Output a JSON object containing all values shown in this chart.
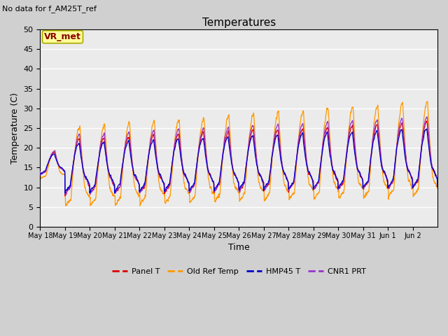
{
  "title": "Temperatures",
  "subtitle": "No data for f_AM25T_ref",
  "xlabel": "Time",
  "ylabel": "Temperature (C)",
  "ylim": [
    0,
    50
  ],
  "yticks": [
    0,
    5,
    10,
    15,
    20,
    25,
    30,
    35,
    40,
    45,
    50
  ],
  "series_colors": {
    "Panel T": "#dd0000",
    "Old Ref Temp": "#ff9900",
    "HMP45 T": "#0000cc",
    "CNR1 PRT": "#9933cc"
  },
  "annotation_box": "VR_met",
  "annotation_box_color": "#ffff99",
  "annotation_text_color": "#880000",
  "plot_bg_color": "#ebebeb",
  "grid_color": "#ffffff",
  "num_days": 16,
  "start_day": 18,
  "start_month": "May",
  "tick_labels": [
    "May 18",
    "May 19",
    "May 20",
    "May 21",
    "May 22",
    "May 23",
    "May 24",
    "May 25",
    "May 26",
    "May 27",
    "May 28",
    "May 29",
    "May 30",
    "May 31",
    "Jun 1",
    "Jun 2"
  ],
  "figsize": [
    6.4,
    4.8
  ],
  "dpi": 100
}
